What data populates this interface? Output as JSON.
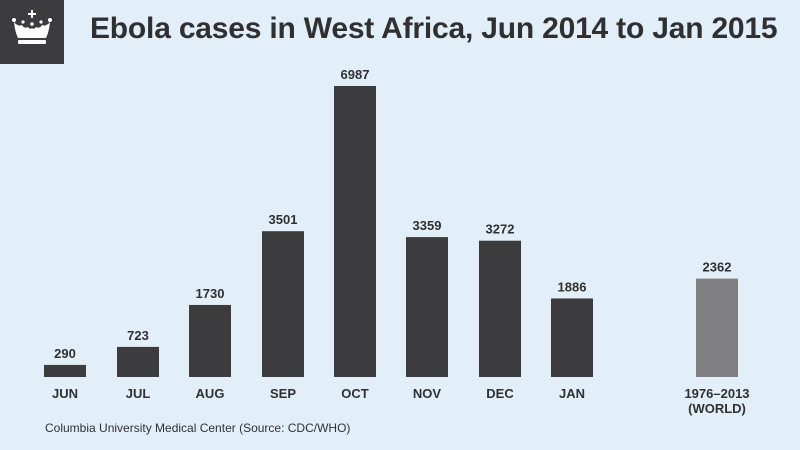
{
  "title": "Ebola cases in West Africa, Jun 2014 to Jan 2015",
  "logo_icon": "crown-icon",
  "source": "Columbia University Medical Center (Source: CDC/WHO)",
  "colors": {
    "background": "#e3eff8",
    "bar": "#3c3c3e",
    "bar_world": "#808083",
    "text": "#303032"
  },
  "chart_data": {
    "type": "bar",
    "title": "Ebola cases in West Africa, Jun 2014 to Jan 2015",
    "xlabel": "",
    "ylabel": "",
    "grid": false,
    "categories": [
      "JUN",
      "JUL",
      "AUG",
      "SEP",
      "OCT",
      "NOV",
      "DEC",
      "JAN",
      "1976–2013 (WORLD)"
    ],
    "category_lines": [
      [
        "JUN"
      ],
      [
        "JUL"
      ],
      [
        "AUG"
      ],
      [
        "SEP"
      ],
      [
        "OCT"
      ],
      [
        "NOV"
      ],
      [
        "DEC"
      ],
      [
        "JAN"
      ],
      [
        "1976–2013",
        "(WORLD)"
      ]
    ],
    "values": [
      290,
      723,
      1730,
      3501,
      6987,
      3359,
      3272,
      1886,
      2362
    ],
    "highlight": [
      false,
      false,
      false,
      false,
      false,
      false,
      false,
      false,
      true
    ],
    "ylim": [
      0,
      6987
    ]
  }
}
